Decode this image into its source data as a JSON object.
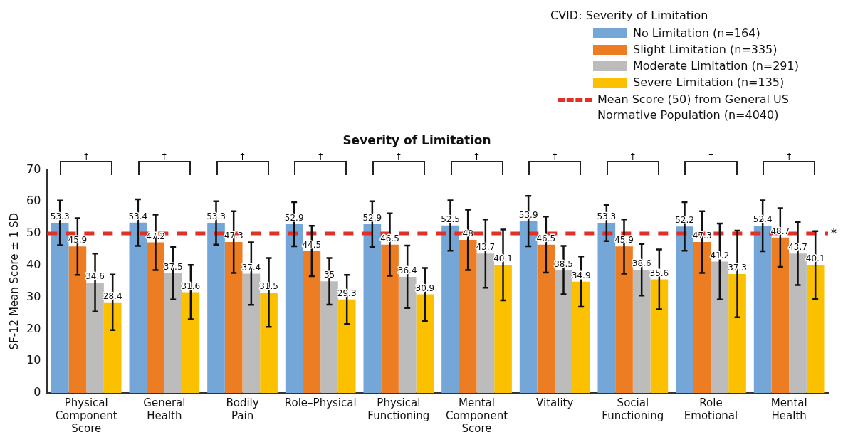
{
  "chart_data": {
    "type": "bar",
    "title": "Severity of Limitation",
    "ylabel": "SF-12 Mean Score ± 1 SD",
    "legend_title": "CVID: Severity of Limitation",
    "categories": [
      "Physical Component Score",
      "General Health",
      "Bodily Pain",
      "Role–Physical",
      "Physical Functioning",
      "Mental Component Score",
      "Vitality",
      "Social Functioning",
      "Role Emotional",
      "Mental Health"
    ],
    "series": [
      {
        "name": "No Limitation (n=164)",
        "color": "#74a6d8",
        "values": [
          53.3,
          53.4,
          53.3,
          52.9,
          52.9,
          52.5,
          53.9,
          53.3,
          52.2,
          52.4
        ],
        "errors": [
          7.0,
          7.3,
          6.8,
          6.9,
          7.2,
          7.9,
          7.9,
          5.7,
          7.6,
          8.0
        ]
      },
      {
        "name": "Slight Limitation (n=335)",
        "color": "#ed7d23",
        "values": [
          45.9,
          47.2,
          47.3,
          44.5,
          46.5,
          48,
          46.5,
          45.9,
          47.3,
          48.7
        ],
        "errors": [
          8.9,
          8.7,
          9.7,
          7.9,
          9.8,
          9.5,
          8.8,
          8.5,
          9.7,
          9.2
        ]
      },
      {
        "name": "Moderate Limitation (n=291)",
        "color": "#bcbcbc",
        "values": [
          34.6,
          37.5,
          37.4,
          35,
          36.4,
          43.7,
          38.5,
          38.6,
          41.2,
          43.7
        ],
        "errors": [
          9.1,
          8.2,
          9.8,
          7.3,
          9.8,
          10.7,
          7.6,
          8.1,
          11.9,
          9.9
        ]
      },
      {
        "name": "Severe Limitation (n=135)",
        "color": "#fbc100",
        "values": [
          28.4,
          31.6,
          31.5,
          29.3,
          30.9,
          40.1,
          34.9,
          35.6,
          37.3,
          40.1
        ],
        "errors": [
          8.7,
          8.5,
          10.8,
          7.7,
          8.3,
          11.1,
          7.9,
          9.4,
          13.6,
          10.6
        ]
      }
    ],
    "ylim": [
      0,
      70
    ],
    "yticks": [
      0,
      10,
      20,
      30,
      40,
      50,
      60,
      70
    ],
    "ref_lines": [
      {
        "axis": "y",
        "value": 50,
        "label": "Mean Score (50) from General US Normative Population (n=4040)",
        "color": "#e03127",
        "line_style": "dashed"
      }
    ],
    "annotations": [
      "†",
      "†",
      "†",
      "†",
      "†",
      "†",
      "†",
      "†",
      "†",
      "†",
      "*"
    ],
    "data_labels": true,
    "legend": "top right",
    "grid": false
  }
}
